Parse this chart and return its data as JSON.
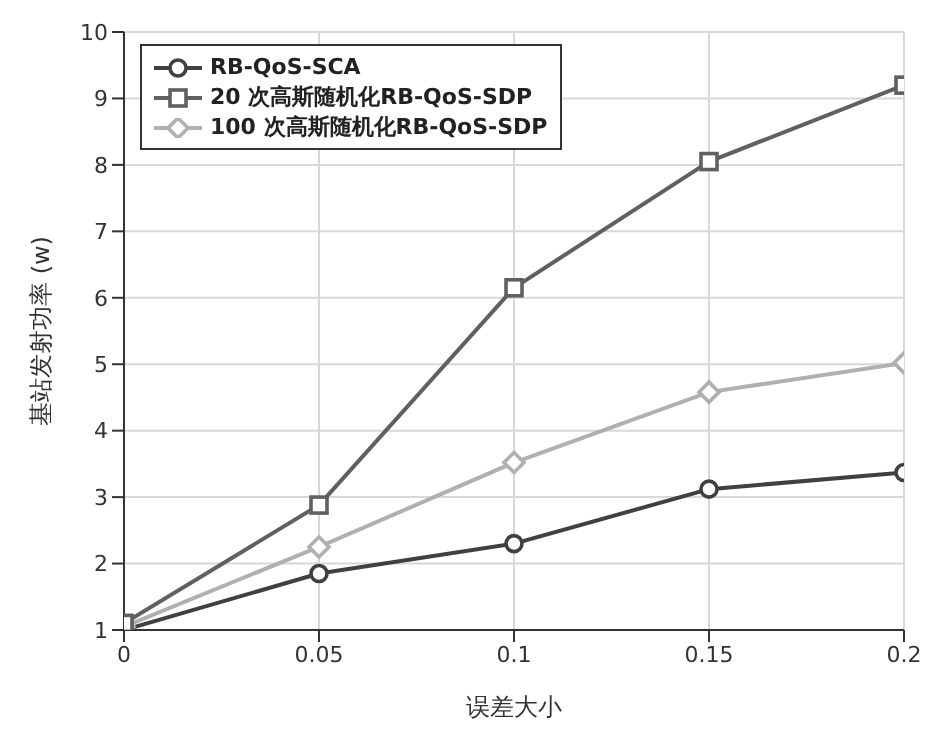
{
  "chart_data": {
    "type": "line",
    "xlabel": "误差大小",
    "ylabel": "基站发射功率 (w)",
    "x": [
      0,
      0.05,
      0.1,
      0.15,
      0.2
    ],
    "series": [
      {
        "name": "RB-QoS-SCA",
        "color": "#404040",
        "marker": "circle",
        "values": [
          1.0,
          1.85,
          2.3,
          3.12,
          3.37
        ]
      },
      {
        "name": "20 次高斯随机化RB-QoS-SDP",
        "color": "#606060",
        "marker": "square",
        "values": [
          1.1,
          2.88,
          6.15,
          8.05,
          9.2
        ]
      },
      {
        "name": "100 次高斯随机化RB-QoS-SDP",
        "color": "#b0b0b0",
        "marker": "diamond",
        "values": [
          1.05,
          2.25,
          3.52,
          4.58,
          5.02
        ]
      }
    ],
    "xlim": [
      0,
      0.2
    ],
    "xticks": [
      0,
      0.05,
      0.1,
      0.15,
      0.2
    ],
    "ylim": [
      1,
      10
    ],
    "yticks": [
      1,
      2,
      3,
      4,
      5,
      6,
      7,
      8,
      9,
      10
    ],
    "grid": true,
    "legend": "top left",
    "line_style": "solid"
  }
}
